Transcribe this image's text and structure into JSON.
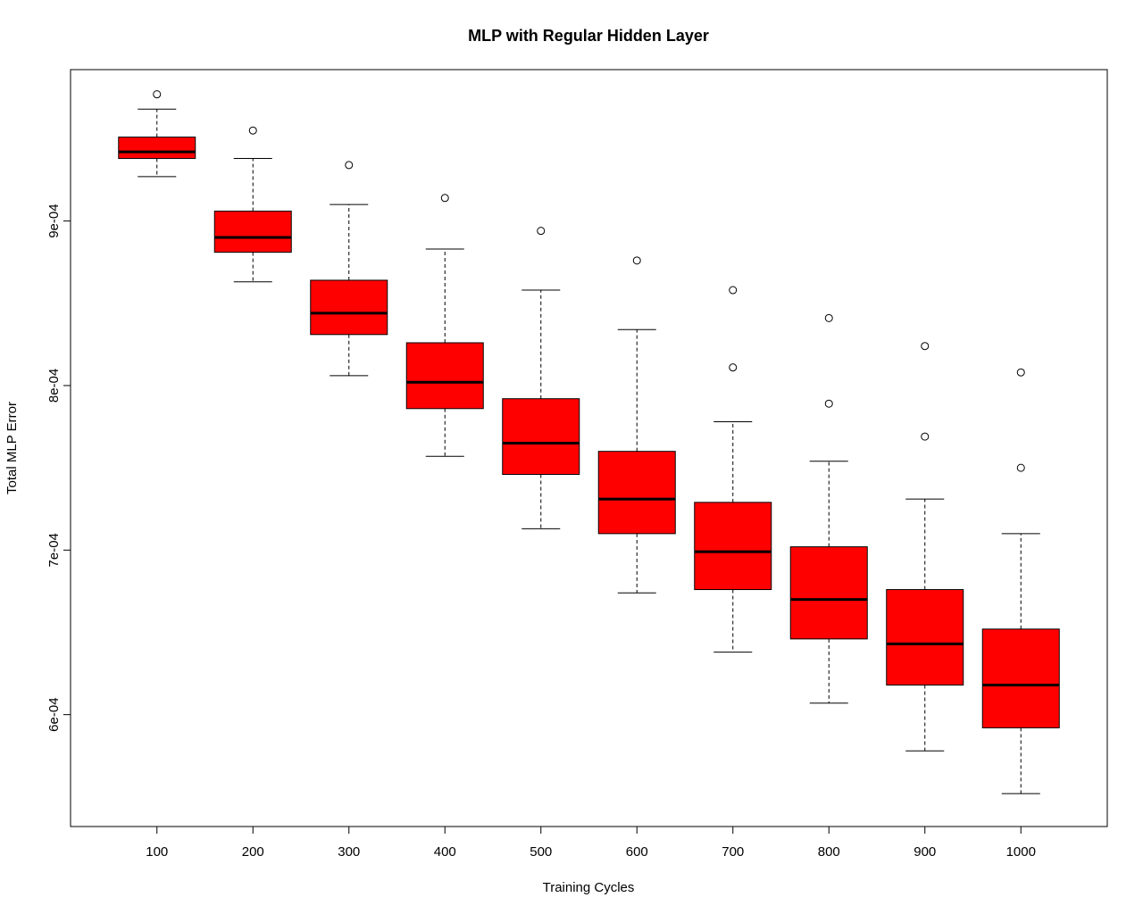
{
  "chart_data": {
    "type": "box",
    "title": "MLP with Regular Hidden Layer",
    "xlabel": "Training Cycles",
    "ylabel": "Total MLP Error",
    "categories": [
      "100",
      "200",
      "300",
      "400",
      "500",
      "600",
      "700",
      "800",
      "900",
      "1000"
    ],
    "y_ticks": [
      0.0006,
      0.0007,
      0.0008,
      0.0009
    ],
    "y_tick_labels": [
      "6e-04",
      "7e-04",
      "8e-04",
      "9e-04"
    ],
    "ylim": [
      0.000532,
      0.000992
    ],
    "box_fill": "#ff0000",
    "boxes": [
      {
        "category": "100",
        "whisker_low": 0.000927,
        "q1": 0.000938,
        "median": 0.000942,
        "q3": 0.000951,
        "whisker_high": 0.000968,
        "outliers": [
          0.000977
        ]
      },
      {
        "category": "200",
        "whisker_low": 0.000863,
        "q1": 0.000881,
        "median": 0.00089,
        "q3": 0.000906,
        "whisker_high": 0.000938,
        "outliers": [
          0.000955
        ]
      },
      {
        "category": "300",
        "whisker_low": 0.000806,
        "q1": 0.000831,
        "median": 0.000844,
        "q3": 0.000864,
        "whisker_high": 0.00091,
        "outliers": [
          0.000934
        ]
      },
      {
        "category": "400",
        "whisker_low": 0.000757,
        "q1": 0.000786,
        "median": 0.000802,
        "q3": 0.000826,
        "whisker_high": 0.000883,
        "outliers": [
          0.000914
        ]
      },
      {
        "category": "500",
        "whisker_low": 0.000713,
        "q1": 0.000746,
        "median": 0.000765,
        "q3": 0.000792,
        "whisker_high": 0.000858,
        "outliers": [
          0.000894
        ]
      },
      {
        "category": "600",
        "whisker_low": 0.000674,
        "q1": 0.00071,
        "median": 0.000731,
        "q3": 0.00076,
        "whisker_high": 0.000834,
        "outliers": [
          0.000876
        ]
      },
      {
        "category": "700",
        "whisker_low": 0.000638,
        "q1": 0.000676,
        "median": 0.000699,
        "q3": 0.000729,
        "whisker_high": 0.000778,
        "outliers": [
          0.000811,
          0.000858
        ]
      },
      {
        "category": "800",
        "whisker_low": 0.000607,
        "q1": 0.000646,
        "median": 0.00067,
        "q3": 0.000702,
        "whisker_high": 0.000754,
        "outliers": [
          0.000789,
          0.000841
        ]
      },
      {
        "category": "900",
        "whisker_low": 0.000578,
        "q1": 0.000618,
        "median": 0.000643,
        "q3": 0.000676,
        "whisker_high": 0.000731,
        "outliers": [
          0.000769,
          0.000824
        ]
      },
      {
        "category": "1000",
        "whisker_low": 0.000552,
        "q1": 0.000592,
        "median": 0.000618,
        "q3": 0.000652,
        "whisker_high": 0.00071,
        "outliers": [
          0.00075,
          0.000808
        ]
      }
    ]
  }
}
